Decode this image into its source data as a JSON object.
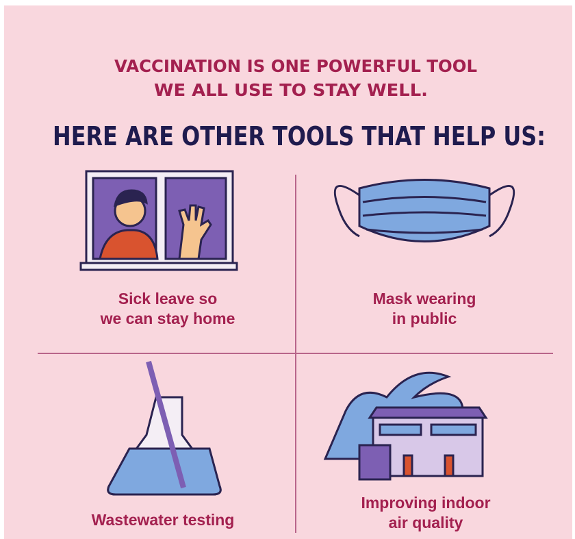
{
  "intro": {
    "lines": [
      "VACCINATION IS ONE POWERFUL TOOL",
      "WE ALL USE TO STAY WELL."
    ]
  },
  "heading": "HERE ARE OTHER TOOLS THAT HELP US:",
  "tools": [
    {
      "caption": [
        "Sick leave so",
        "we can stay home"
      ]
    },
    {
      "caption": [
        "Mask wearing",
        "in public"
      ]
    },
    {
      "caption": [
        "Wastewater testing"
      ]
    },
    {
      "caption": [
        "Improving indoor",
        "air quality"
      ]
    }
  ]
}
